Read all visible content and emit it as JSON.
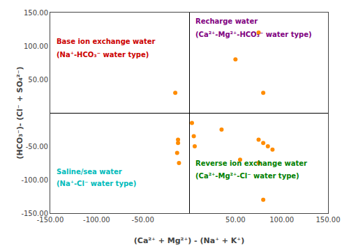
{
  "chart_data": {
    "type": "scatter",
    "x": [
      -15,
      -12,
      -12,
      -13,
      -11,
      3,
      5,
      6,
      35,
      75,
      80,
      85,
      90,
      55,
      75,
      80,
      50,
      75,
      80
    ],
    "values": [
      30,
      -40,
      -45,
      -60,
      -75,
      -15,
      -35,
      -50,
      -25,
      -40,
      -45,
      -50,
      -55,
      -70,
      -75,
      -130,
      80,
      120,
      30
    ],
    "color": "#FF8C00",
    "marker": "circle",
    "xlim": [
      -150,
      150
    ],
    "ylim": [
      -150,
      150
    ],
    "xticks": [
      {
        "value": -150,
        "label": "-150.00"
      },
      {
        "value": -100,
        "label": "-100.00"
      },
      {
        "value": -50,
        "label": "-50.00"
      },
      {
        "value": 50,
        "label": "50.00"
      },
      {
        "value": 100,
        "label": "100.00"
      },
      {
        "value": 150,
        "label": "150.00"
      }
    ],
    "yticks": [
      {
        "value": -150,
        "label": "-150.00"
      },
      {
        "value": -100,
        "label": "-100.00"
      },
      {
        "value": -50,
        "label": "-50.00"
      },
      {
        "value": 50,
        "label": "50.00"
      },
      {
        "value": 100,
        "label": "100.00"
      },
      {
        "value": 150,
        "label": "150.00"
      }
    ],
    "grid": false,
    "xlabel": "(Ca²⁺ + Mg²⁺) - (Na⁺ + K⁺)",
    "ylabel": "(HCO₃⁻)- (Cl⁻ + SO₄²⁻)",
    "annotations": [
      {
        "text": "Base ion exchange water",
        "x": -145,
        "y": 115,
        "color": "#CC0000"
      },
      {
        "text": "(Na⁺-HCO₃⁻ water type)",
        "x": -145,
        "y": 95,
        "color": "#CC0000"
      },
      {
        "text": "Recharge water",
        "x": 5,
        "y": 145,
        "color": "#800080"
      },
      {
        "text": "(Ca²⁺-Mg²⁺-HCO₃⁻ water type)",
        "x": 5,
        "y": 125,
        "color": "#800080"
      },
      {
        "text": "Saline/sea water",
        "x": -145,
        "y": -80,
        "color": "#00BBBB"
      },
      {
        "text": "(Na⁺-Cl⁻ water type)",
        "x": -145,
        "y": -98,
        "color": "#00BBBB"
      },
      {
        "text": "Reverse ion exchange water",
        "x": 5,
        "y": -68,
        "color": "#008000"
      },
      {
        "text": "(Ca²⁺-Mg²⁺-Cl⁻ water type)",
        "x": 5,
        "y": -86,
        "color": "#008000"
      }
    ]
  }
}
